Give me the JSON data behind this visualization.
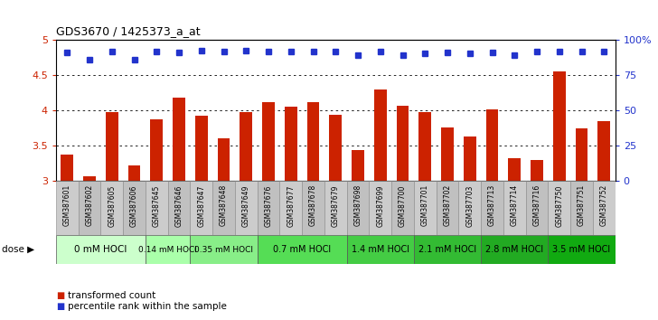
{
  "title": "GDS3670 / 1425373_a_at",
  "samples": [
    "GSM387601",
    "GSM387602",
    "GSM387605",
    "GSM387606",
    "GSM387645",
    "GSM387646",
    "GSM387647",
    "GSM387648",
    "GSM387649",
    "GSM387676",
    "GSM387677",
    "GSM387678",
    "GSM387679",
    "GSM387698",
    "GSM387699",
    "GSM387700",
    "GSM387701",
    "GSM387702",
    "GSM387703",
    "GSM387713",
    "GSM387714",
    "GSM387716",
    "GSM387750",
    "GSM387751",
    "GSM387752"
  ],
  "bar_values": [
    3.37,
    3.07,
    3.97,
    3.22,
    3.87,
    4.18,
    3.93,
    3.6,
    3.97,
    4.12,
    4.05,
    4.12,
    3.94,
    3.44,
    4.3,
    4.06,
    3.97,
    3.76,
    3.63,
    4.02,
    3.32,
    3.3,
    4.55,
    3.75,
    3.85
  ],
  "percentile_values": [
    4.82,
    4.72,
    4.83,
    4.72,
    4.84,
    4.82,
    4.85,
    4.83,
    4.85,
    4.83,
    4.84,
    4.83,
    4.83,
    4.79,
    4.83,
    4.79,
    4.81,
    4.82,
    4.81,
    4.82,
    4.79,
    4.84,
    4.83,
    4.83,
    4.83
  ],
  "bar_color": "#cc2200",
  "dot_color": "#2233cc",
  "ylim": [
    3.0,
    5.0
  ],
  "yticks": [
    3.0,
    3.5,
    4.0,
    4.5,
    5.0
  ],
  "ytick_labels": [
    "3",
    "3.5",
    "4",
    "4.5",
    "5"
  ],
  "right_yticks": [
    0,
    25,
    50,
    75,
    100
  ],
  "right_ytick_labels": [
    "0",
    "25",
    "50",
    "75",
    "100%"
  ],
  "dose_groups": [
    {
      "label": "0 mM HOCl",
      "start": 0,
      "end": 4,
      "color": "#ccffcc",
      "text_size": 7.5
    },
    {
      "label": "0.14 mM HOCl",
      "start": 4,
      "end": 6,
      "color": "#aaffaa",
      "text_size": 6.5
    },
    {
      "label": "0.35 mM HOCl",
      "start": 6,
      "end": 9,
      "color": "#88ee88",
      "text_size": 6.5
    },
    {
      "label": "0.7 mM HOCl",
      "start": 9,
      "end": 13,
      "color": "#55dd55",
      "text_size": 7.0
    },
    {
      "label": "1.4 mM HOCl",
      "start": 13,
      "end": 16,
      "color": "#44cc44",
      "text_size": 7.0
    },
    {
      "label": "2.1 mM HOCl",
      "start": 16,
      "end": 19,
      "color": "#33bb33",
      "text_size": 7.0
    },
    {
      "label": "2.8 mM HOCl",
      "start": 19,
      "end": 22,
      "color": "#22aa22",
      "text_size": 7.0
    },
    {
      "label": "3.5 mM HOCl",
      "start": 22,
      "end": 25,
      "color": "#11aa11",
      "text_size": 7.0
    }
  ],
  "dose_label": "dose",
  "legend_bar_label": "transformed count",
  "legend_dot_label": "percentile rank within the sample",
  "grid_yticks": [
    3.5,
    4.0,
    4.5
  ],
  "grid_color": "#000000",
  "background_color": "#ffffff",
  "axis_label_color_left": "#cc2200",
  "axis_label_color_right": "#2233cc",
  "xlabel_area_color": "#cccccc",
  "border_color": "#444444",
  "title_fontsize": 9,
  "bar_fontsize": 5.5,
  "ytick_fontsize": 8
}
